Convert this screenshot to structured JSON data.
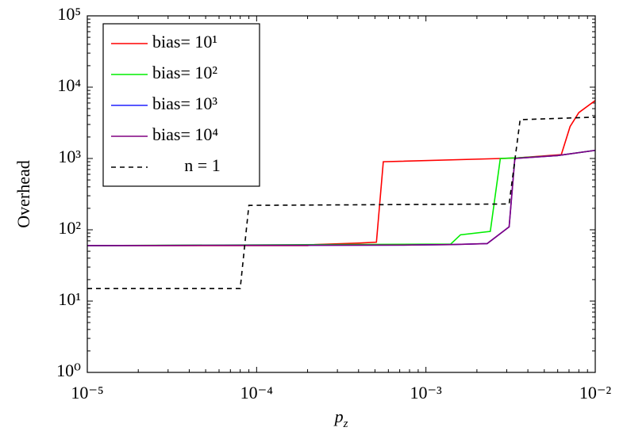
{
  "chart_data": {
    "type": "line",
    "x_label": "pz",
    "y_label": "Overhead",
    "xscale": "log",
    "yscale": "log",
    "xlim": [
      1e-05,
      0.01
    ],
    "ylim": [
      1,
      100000
    ],
    "xticks": [
      {
        "value": 1e-05,
        "label": "10⁻⁵"
      },
      {
        "value": 0.0001,
        "label": "10⁻⁴"
      },
      {
        "value": 0.001,
        "label": "10⁻³"
      },
      {
        "value": 0.01,
        "label": "10⁻²"
      }
    ],
    "yticks": [
      {
        "value": 1,
        "label": "10⁰"
      },
      {
        "value": 10,
        "label": "10¹"
      },
      {
        "value": 100,
        "label": "10²"
      },
      {
        "value": 1000,
        "label": "10³"
      },
      {
        "value": 10000,
        "label": "10⁴"
      },
      {
        "value": 100000,
        "label": "10⁵"
      }
    ],
    "legend": "upper left",
    "series": [
      {
        "name": "bias= 10¹",
        "color": "#ff0000",
        "linestyle": "solid",
        "x": [
          1e-05,
          0.0002,
          0.00022,
          0.0004,
          0.00051,
          0.00056,
          0.0028,
          0.0035,
          0.0063,
          0.0071,
          0.008,
          0.01
        ],
        "values": [
          60,
          60,
          62,
          65,
          67,
          900,
          1000,
          1020,
          1130,
          2800,
          4400,
          6500
        ]
      },
      {
        "name": "bias= 10²",
        "color": "#00ee00",
        "linestyle": "solid",
        "x": [
          1e-05,
          0.0014,
          0.0016,
          0.0024,
          0.00275,
          0.0035,
          0.006,
          0.01
        ],
        "values": [
          60,
          63,
          85,
          95,
          1000,
          1020,
          1100,
          1300
        ]
      },
      {
        "name": "bias= 10³",
        "color": "#2020ff",
        "linestyle": "solid",
        "x": [
          1e-05,
          0.0007,
          0.0014,
          0.0023,
          0.0031,
          0.00335,
          0.006,
          0.01
        ],
        "values": [
          60,
          61,
          62,
          64,
          110,
          1000,
          1100,
          1300
        ]
      },
      {
        "name": "bias= 10⁴",
        "color": "#800080",
        "linestyle": "solid",
        "x": [
          1e-05,
          0.0007,
          0.0014,
          0.0023,
          0.0031,
          0.00335,
          0.006,
          0.01
        ],
        "values": [
          60,
          61,
          62,
          64,
          110,
          1000,
          1100,
          1300
        ]
      },
      {
        "name": "n = 1",
        "color": "#000000",
        "linestyle": "dashed",
        "x": [
          1e-05,
          8e-05,
          9e-05,
          0.0031,
          0.0036,
          0.01
        ],
        "values": [
          15,
          15,
          220,
          230,
          3500,
          3800
        ]
      }
    ]
  }
}
